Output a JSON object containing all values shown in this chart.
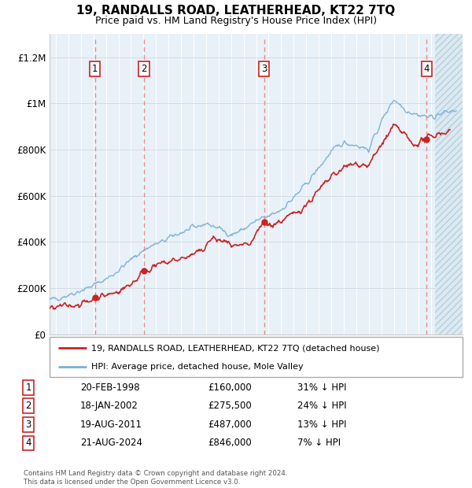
{
  "title": "19, RANDALLS ROAD, LEATHERHEAD, KT22 7TQ",
  "subtitle": "Price paid vs. HM Land Registry's House Price Index (HPI)",
  "ylim": [
    0,
    1300000
  ],
  "xlim_start": 1994.5,
  "xlim_end": 2027.5,
  "yticks": [
    0,
    200000,
    400000,
    600000,
    800000,
    1000000,
    1200000
  ],
  "ytick_labels": [
    "£0",
    "£200K",
    "£400K",
    "£600K",
    "£800K",
    "£1M",
    "£1.2M"
  ],
  "xticks": [
    1995,
    1996,
    1997,
    1998,
    1999,
    2000,
    2001,
    2002,
    2003,
    2004,
    2005,
    2006,
    2007,
    2008,
    2009,
    2010,
    2011,
    2012,
    2013,
    2014,
    2015,
    2016,
    2017,
    2018,
    2019,
    2020,
    2021,
    2022,
    2023,
    2024,
    2025,
    2026,
    2027
  ],
  "hpi_color": "#7bafd4",
  "price_color": "#cc2222",
  "dashed_line_color": "#e88080",
  "background_color": "#e8f0f8",
  "grid_color": "#ffffff",
  "hgrid_color": "#d0d8e0",
  "future_start": 2025.3,
  "sales": [
    {
      "num": 1,
      "date": "20-FEB-1998",
      "year": 1998.13,
      "price": 160000
    },
    {
      "num": 2,
      "date": "18-JAN-2002",
      "year": 2002.05,
      "price": 275500
    },
    {
      "num": 3,
      "date": "19-AUG-2011",
      "year": 2011.63,
      "price": 487000
    },
    {
      "num": 4,
      "date": "21-AUG-2024",
      "year": 2024.63,
      "price": 846000
    }
  ],
  "legend_label_price": "19, RANDALLS ROAD, LEATHERHEAD, KT22 7TQ (detached house)",
  "legend_label_hpi": "HPI: Average price, detached house, Mole Valley",
  "footnote": "Contains HM Land Registry data © Crown copyright and database right 2024.\nThis data is licensed under the Open Government Licence v3.0.",
  "table_rows": [
    [
      "1",
      "20-FEB-1998",
      "£160,000",
      "31% ↓ HPI"
    ],
    [
      "2",
      "18-JAN-2002",
      "£275,500",
      "24% ↓ HPI"
    ],
    [
      "3",
      "19-AUG-2011",
      "£487,000",
      "13% ↓ HPI"
    ],
    [
      "4",
      "21-AUG-2024",
      "£846,000",
      "7% ↓ HPI"
    ]
  ],
  "hpi_anchors_years": [
    1994.5,
    1995.5,
    1996.5,
    1997.5,
    1998.5,
    1999.5,
    2000.5,
    2001.5,
    2002.5,
    2003.5,
    2004.5,
    2005.5,
    2006.5,
    2007.0,
    2008.0,
    2009.0,
    2010.0,
    2011.0,
    2012.0,
    2013.0,
    2014.0,
    2015.0,
    2016.0,
    2017.0,
    2018.0,
    2019.0,
    2020.0,
    2021.0,
    2022.0,
    2023.0,
    2024.0,
    2025.0,
    2026.0,
    2027.0
  ],
  "hpi_anchors_vals": [
    148000,
    162000,
    180000,
    200000,
    225000,
    255000,
    300000,
    345000,
    380000,
    400000,
    430000,
    450000,
    470000,
    480000,
    460000,
    430000,
    455000,
    490000,
    510000,
    540000,
    590000,
    650000,
    720000,
    790000,
    830000,
    820000,
    800000,
    920000,
    1020000,
    970000,
    950000,
    940000,
    960000,
    970000
  ],
  "price_anchors_years": [
    1994.5,
    1995.5,
    1996.5,
    1997.5,
    1998.13,
    1999.5,
    2000.5,
    2001.5,
    2002.05,
    2003.5,
    2004.5,
    2005.5,
    2006.5,
    2007.5,
    2008.5,
    2009.5,
    2010.5,
    2011.0,
    2011.63,
    2012.0,
    2013.0,
    2014.0,
    2015.0,
    2016.0,
    2017.0,
    2018.0,
    2019.0,
    2020.0,
    2021.0,
    2022.0,
    2022.8,
    2023.5,
    2024.63,
    2025.5,
    2026.5
  ],
  "price_anchors_vals": [
    110000,
    120000,
    128000,
    138000,
    160000,
    175000,
    200000,
    240000,
    275500,
    305000,
    320000,
    335000,
    355000,
    415000,
    400000,
    375000,
    385000,
    430000,
    487000,
    470000,
    490000,
    520000,
    560000,
    620000,
    680000,
    720000,
    740000,
    730000,
    820000,
    900000,
    870000,
    820000,
    846000,
    870000,
    880000
  ]
}
